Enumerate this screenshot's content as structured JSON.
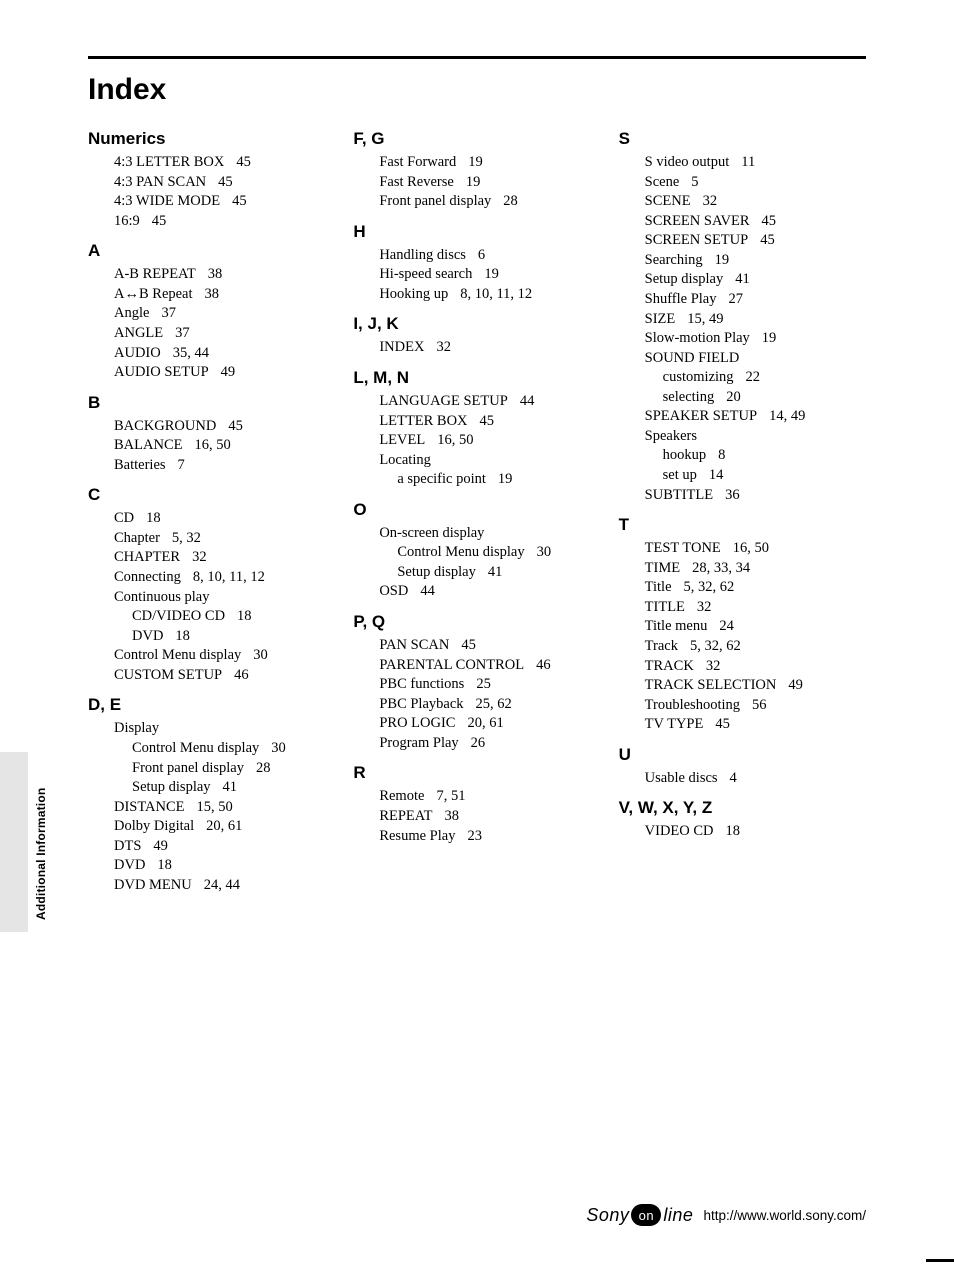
{
  "title": "Index",
  "sideTab": "Additional Information",
  "footer": {
    "logoPre": "Sony",
    "logoOn": "on",
    "logoPost": "line",
    "url": "http://www.world.sony.com/"
  },
  "columns": [
    [
      {
        "head": "Numerics",
        "entries": [
          {
            "t": "4:3 LETTER BOX",
            "p": "45"
          },
          {
            "t": "4:3 PAN SCAN",
            "p": "45"
          },
          {
            "t": "4:3 WIDE MODE",
            "p": "45"
          },
          {
            "t": "16:9",
            "p": "45"
          }
        ]
      },
      {
        "head": "A",
        "entries": [
          {
            "t": "A-B REPEAT",
            "p": "38"
          },
          {
            "t": "A↔B Repeat",
            "p": "38"
          },
          {
            "t": "Angle",
            "p": "37"
          },
          {
            "t": "ANGLE",
            "p": "37"
          },
          {
            "t": "AUDIO",
            "p": "35, 44"
          },
          {
            "t": "AUDIO SETUP",
            "p": "49"
          }
        ]
      },
      {
        "head": "B",
        "entries": [
          {
            "t": "BACKGROUND",
            "p": "45"
          },
          {
            "t": "BALANCE",
            "p": "16, 50"
          },
          {
            "t": "Batteries",
            "p": "7"
          }
        ]
      },
      {
        "head": "C",
        "entries": [
          {
            "t": "CD",
            "p": "18"
          },
          {
            "t": "Chapter",
            "p": "5, 32"
          },
          {
            "t": "CHAPTER",
            "p": "32"
          },
          {
            "t": "Connecting",
            "p": "8, 10, 11, 12"
          },
          {
            "t": "Continuous play",
            "p": ""
          },
          {
            "t": "CD/VIDEO CD",
            "p": "18",
            "sub": true
          },
          {
            "t": "DVD",
            "p": "18",
            "sub": true
          },
          {
            "t": "Control Menu display",
            "p": "30"
          },
          {
            "t": "CUSTOM SETUP",
            "p": "46"
          }
        ]
      },
      {
        "head": "D, E",
        "entries": [
          {
            "t": "Display",
            "p": ""
          },
          {
            "t": "Control Menu display",
            "p": "30",
            "sub": true
          },
          {
            "t": "Front panel display",
            "p": "28",
            "sub": true
          },
          {
            "t": "Setup display",
            "p": "41",
            "sub": true
          },
          {
            "t": "DISTANCE",
            "p": "15, 50"
          },
          {
            "t": "Dolby Digital",
            "p": "20, 61"
          },
          {
            "t": "DTS",
            "p": "49"
          },
          {
            "t": "DVD",
            "p": "18"
          },
          {
            "t": "DVD MENU",
            "p": "24, 44"
          }
        ]
      }
    ],
    [
      {
        "head": "F, G",
        "entries": [
          {
            "t": "Fast Forward",
            "p": "19"
          },
          {
            "t": "Fast Reverse",
            "p": "19"
          },
          {
            "t": "Front panel display",
            "p": "28"
          }
        ]
      },
      {
        "head": "H",
        "entries": [
          {
            "t": "Handling discs",
            "p": "6"
          },
          {
            "t": "Hi-speed search",
            "p": "19"
          },
          {
            "t": "Hooking up",
            "p": "8, 10, 11, 12"
          }
        ]
      },
      {
        "head": "I, J, K",
        "entries": [
          {
            "t": "INDEX",
            "p": "32"
          }
        ]
      },
      {
        "head": "L, M, N",
        "entries": [
          {
            "t": "LANGUAGE SETUP",
            "p": "44"
          },
          {
            "t": "LETTER BOX",
            "p": "45"
          },
          {
            "t": "LEVEL",
            "p": "16, 50"
          },
          {
            "t": "Locating",
            "p": ""
          },
          {
            "t": "a specific point",
            "p": "19",
            "sub": true
          }
        ]
      },
      {
        "head": "O",
        "entries": [
          {
            "t": "On-screen display",
            "p": ""
          },
          {
            "t": "Control Menu display",
            "p": "30",
            "sub": true
          },
          {
            "t": "Setup display",
            "p": "41",
            "sub": true
          },
          {
            "t": "OSD",
            "p": "44"
          }
        ]
      },
      {
        "head": "P, Q",
        "entries": [
          {
            "t": "PAN SCAN",
            "p": "45"
          },
          {
            "t": "PARENTAL CONTROL",
            "p": "46"
          },
          {
            "t": "PBC functions",
            "p": "25"
          },
          {
            "t": "PBC Playback",
            "p": "25, 62"
          },
          {
            "t": "PRO LOGIC",
            "p": "20, 61"
          },
          {
            "t": "Program Play",
            "p": "26"
          }
        ]
      },
      {
        "head": "R",
        "entries": [
          {
            "t": "Remote",
            "p": "7, 51"
          },
          {
            "t": "REPEAT",
            "p": "38"
          },
          {
            "t": "Resume Play",
            "p": "23"
          }
        ]
      }
    ],
    [
      {
        "head": "S",
        "entries": [
          {
            "t": "S video output",
            "p": "11"
          },
          {
            "t": "Scene",
            "p": "5"
          },
          {
            "t": "SCENE",
            "p": "32"
          },
          {
            "t": "SCREEN SAVER",
            "p": "45"
          },
          {
            "t": "SCREEN SETUP",
            "p": "45"
          },
          {
            "t": "Searching",
            "p": "19"
          },
          {
            "t": "Setup display",
            "p": "41"
          },
          {
            "t": "Shuffle Play",
            "p": "27"
          },
          {
            "t": "SIZE",
            "p": "15, 49"
          },
          {
            "t": "Slow-motion Play",
            "p": "19"
          },
          {
            "t": "SOUND FIELD",
            "p": ""
          },
          {
            "t": "customizing",
            "p": "22",
            "sub": true
          },
          {
            "t": "selecting",
            "p": "20",
            "sub": true
          },
          {
            "t": "SPEAKER SETUP",
            "p": "14, 49"
          },
          {
            "t": "Speakers",
            "p": ""
          },
          {
            "t": "hookup",
            "p": "8",
            "sub": true
          },
          {
            "t": "set up",
            "p": "14",
            "sub": true
          },
          {
            "t": "SUBTITLE",
            "p": "36"
          }
        ]
      },
      {
        "head": "T",
        "entries": [
          {
            "t": "TEST TONE",
            "p": "16, 50"
          },
          {
            "t": "TIME",
            "p": "28, 33, 34"
          },
          {
            "t": "Title",
            "p": "5, 32, 62"
          },
          {
            "t": "TITLE",
            "p": "32"
          },
          {
            "t": "Title menu",
            "p": "24"
          },
          {
            "t": "Track",
            "p": "5, 32, 62"
          },
          {
            "t": "TRACK",
            "p": "32"
          },
          {
            "t": "TRACK SELECTION",
            "p": "49"
          },
          {
            "t": "Troubleshooting",
            "p": "56"
          },
          {
            "t": "TV TYPE",
            "p": "45"
          }
        ]
      },
      {
        "head": "U",
        "entries": [
          {
            "t": "Usable discs",
            "p": "4"
          }
        ]
      },
      {
        "head": "V, W, X, Y, Z",
        "entries": [
          {
            "t": "VIDEO CD",
            "p": "18"
          }
        ]
      }
    ]
  ]
}
